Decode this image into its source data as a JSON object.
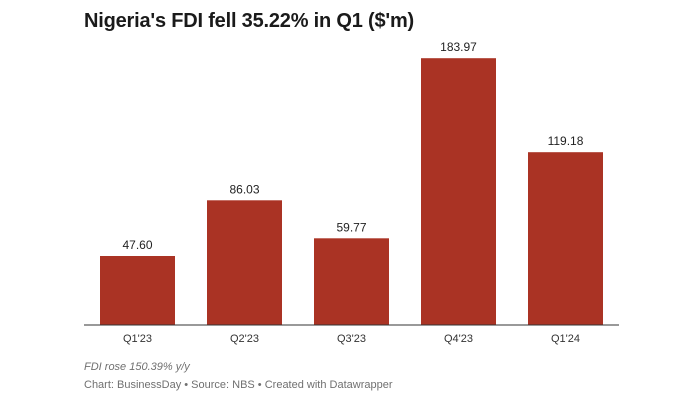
{
  "chart_data": {
    "type": "bar",
    "title": "Nigeria's FDI fell 35.22% in Q1 ($'m)",
    "categories": [
      "Q1'23",
      "Q2'23",
      "Q3'23",
      "Q4'23",
      "Q1'24"
    ],
    "values": [
      47.6,
      86.03,
      59.77,
      183.97,
      119.18
    ],
    "value_labels": [
      "47.60",
      "86.03",
      "59.77",
      "183.97",
      "119.18"
    ],
    "bar_color": "#aa3324",
    "ylim": [
      0,
      200
    ],
    "grid": false,
    "legend": "none",
    "xlabel": "",
    "ylabel": ""
  },
  "note": "FDI rose 150.39% y/y",
  "footer": "Chart: BusinessDay • Source: NBS • Created with Datawrapper"
}
